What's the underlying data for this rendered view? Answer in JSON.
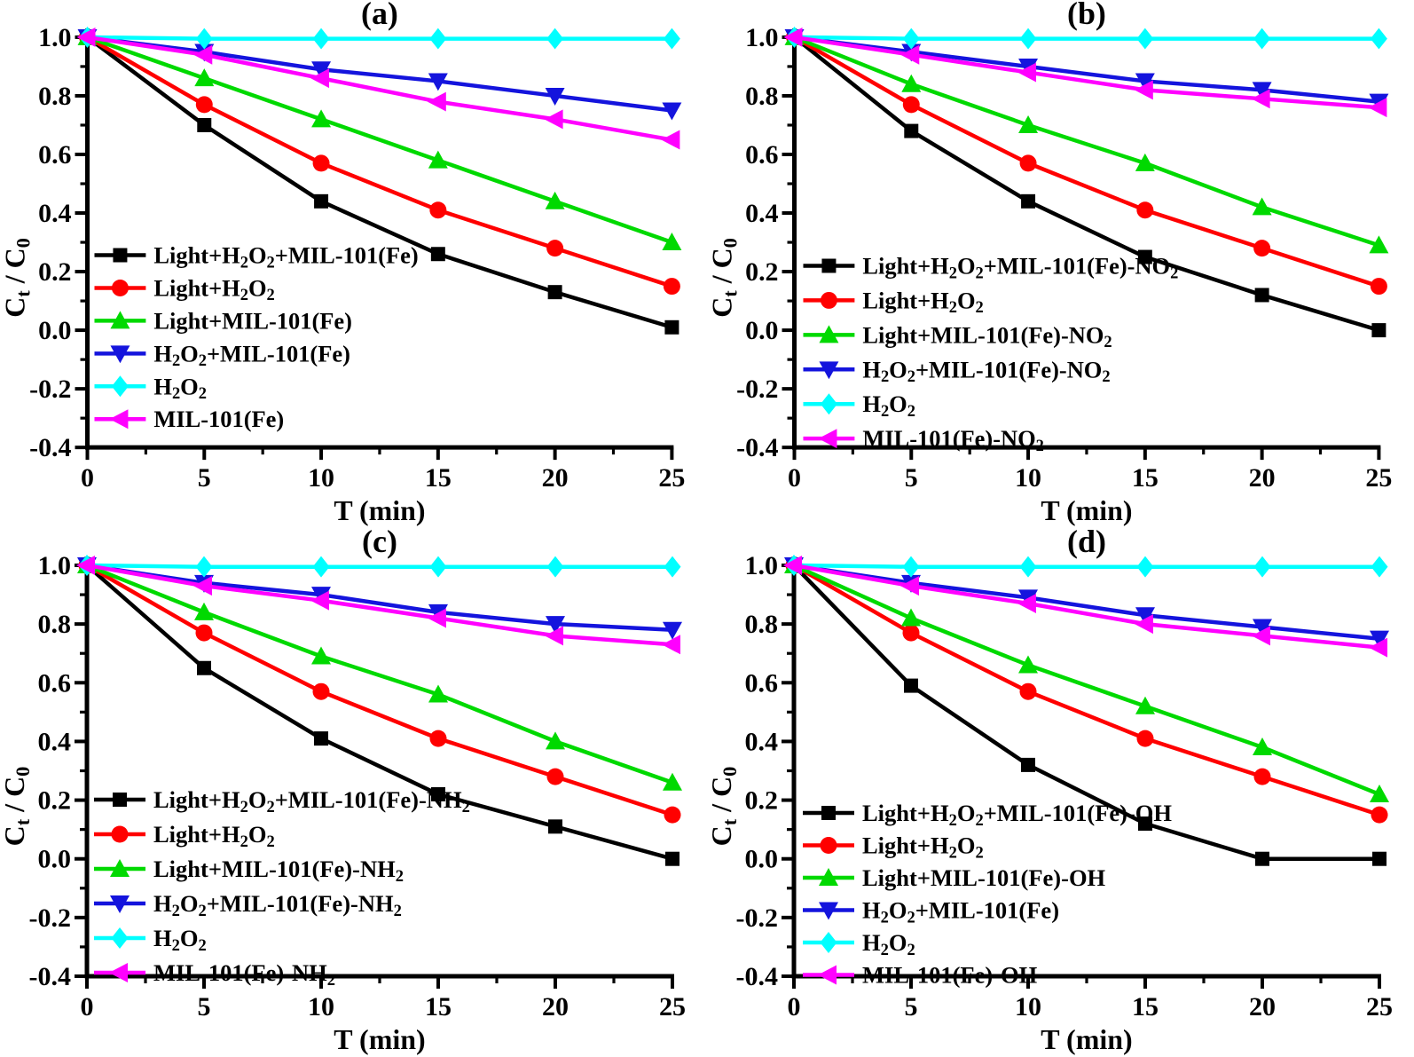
{
  "figure": {
    "background": "#ffffff",
    "colors": {
      "black": "#000000",
      "red": "#ff0000",
      "green": "#00d900",
      "blue": "#1414dd",
      "cyan": "#00ffff",
      "magenta": "#ff00ff"
    }
  },
  "chart_data": [
    {
      "panel": "a",
      "type": "line",
      "title": "(a)",
      "xlabel": "T (min)",
      "ylabel": "Ct / C0",
      "x": [
        0,
        5,
        10,
        15,
        20,
        25
      ],
      "xlim": [
        0,
        25
      ],
      "ylim": [
        -0.4,
        1.0
      ],
      "x_ticks": [
        "0",
        "5",
        "10",
        "15",
        "20",
        "25"
      ],
      "y_ticks": [
        "1.0",
        "0.8",
        "0.6",
        "0.4",
        "0.2",
        "0.0",
        "-0.2",
        "-0.4"
      ],
      "x_minor_ticks": [
        2.5,
        7.5,
        12.5,
        17.5,
        22.5
      ],
      "y_minor_step": 0.1,
      "grid": false,
      "legend_position": "inside-left-middle",
      "series": [
        {
          "name": "Light+H2O2+MIL-101(Fe)",
          "color": "#000000",
          "marker": "square",
          "values": [
            1.0,
            0.7,
            0.44,
            0.26,
            0.13,
            0.01
          ]
        },
        {
          "name": "Light+H2O2",
          "color": "#ff0000",
          "marker": "circle",
          "values": [
            1.0,
            0.77,
            0.57,
            0.41,
            0.28,
            0.15
          ]
        },
        {
          "name": "Light+MIL-101(Fe)",
          "color": "#00d900",
          "marker": "triangle-up",
          "values": [
            1.0,
            0.86,
            0.72,
            0.58,
            0.44,
            0.3
          ]
        },
        {
          "name": "H2O2+MIL-101(Fe)",
          "color": "#1414dd",
          "marker": "triangle-down",
          "values": [
            1.0,
            0.95,
            0.89,
            0.85,
            0.8,
            0.75
          ]
        },
        {
          "name": "H2O2",
          "color": "#00ffff",
          "marker": "diamond",
          "values": [
            1.0,
            0.995,
            0.995,
            0.995,
            0.995,
            0.995
          ]
        },
        {
          "name": "MIL-101(Fe)",
          "color": "#ff00ff",
          "marker": "triangle-left",
          "values": [
            1.0,
            0.94,
            0.86,
            0.78,
            0.72,
            0.65
          ]
        }
      ]
    },
    {
      "panel": "b",
      "type": "line",
      "title": "(b)",
      "xlabel": "T (min)",
      "ylabel": "Ct / C0",
      "x": [
        0,
        5,
        10,
        15,
        20,
        25
      ],
      "xlim": [
        0,
        25
      ],
      "ylim": [
        -0.4,
        1.0
      ],
      "x_ticks": [
        "0",
        "5",
        "10",
        "15",
        "20",
        "25"
      ],
      "y_ticks": [
        "1.0",
        "0.8",
        "0.6",
        "0.4",
        "0.2",
        "0.0",
        "-0.2",
        "-0.4"
      ],
      "x_minor_ticks": [
        2.5,
        7.5,
        12.5,
        17.5,
        22.5
      ],
      "y_minor_step": 0.1,
      "grid": false,
      "legend_position": "inside-left-middle",
      "series": [
        {
          "name": "Light+H2O2+MIL-101(Fe)-NO2",
          "color": "#000000",
          "marker": "square",
          "values": [
            1.0,
            0.68,
            0.44,
            0.25,
            0.12,
            0.0
          ]
        },
        {
          "name": "Light+H2O2",
          "color": "#ff0000",
          "marker": "circle",
          "values": [
            1.0,
            0.77,
            0.57,
            0.41,
            0.28,
            0.15
          ]
        },
        {
          "name": "Light+MIL-101(Fe)-NO2",
          "color": "#00d900",
          "marker": "triangle-up",
          "values": [
            1.0,
            0.84,
            0.7,
            0.57,
            0.42,
            0.29
          ]
        },
        {
          "name": "H2O2+MIL-101(Fe)-NO2",
          "color": "#1414dd",
          "marker": "triangle-down",
          "values": [
            1.0,
            0.95,
            0.9,
            0.85,
            0.82,
            0.78
          ]
        },
        {
          "name": "H2O2",
          "color": "#00ffff",
          "marker": "diamond",
          "values": [
            1.0,
            0.995,
            0.995,
            0.995,
            0.995,
            0.995
          ]
        },
        {
          "name": "MIL-101(Fe)-NO2",
          "color": "#ff00ff",
          "marker": "triangle-left",
          "values": [
            1.0,
            0.94,
            0.88,
            0.82,
            0.79,
            0.76
          ]
        }
      ]
    },
    {
      "panel": "c",
      "type": "line",
      "title": "(c)",
      "xlabel": "T (min)",
      "ylabel": "Ct / C0",
      "x": [
        0,
        5,
        10,
        15,
        20,
        25
      ],
      "xlim": [
        0,
        25
      ],
      "ylim": [
        -0.4,
        1.0
      ],
      "x_ticks": [
        "0",
        "5",
        "10",
        "15",
        "20",
        "25"
      ],
      "y_ticks": [
        "1.0",
        "0.8",
        "0.6",
        "0.4",
        "0.2",
        "0.0",
        "-0.2",
        "-0.4"
      ],
      "x_minor_ticks": [
        2.5,
        7.5,
        12.5,
        17.5,
        22.5
      ],
      "y_minor_step": 0.1,
      "grid": false,
      "legend_position": "inside-left-middle",
      "series": [
        {
          "name": "Light+H2O2+MIL-101(Fe)-NH2",
          "color": "#000000",
          "marker": "square",
          "values": [
            1.0,
            0.65,
            0.41,
            0.22,
            0.11,
            0.0
          ]
        },
        {
          "name": "Light+H2O2",
          "color": "#ff0000",
          "marker": "circle",
          "values": [
            1.0,
            0.77,
            0.57,
            0.41,
            0.28,
            0.15
          ]
        },
        {
          "name": "Light+MIL-101(Fe)-NH2",
          "color": "#00d900",
          "marker": "triangle-up",
          "values": [
            1.0,
            0.84,
            0.69,
            0.56,
            0.4,
            0.26
          ]
        },
        {
          "name": "H2O2+MIL-101(Fe)-NH2",
          "color": "#1414dd",
          "marker": "triangle-down",
          "values": [
            1.0,
            0.94,
            0.9,
            0.84,
            0.8,
            0.78
          ]
        },
        {
          "name": "H2O2",
          "color": "#00ffff",
          "marker": "diamond",
          "values": [
            1.0,
            0.995,
            0.995,
            0.995,
            0.995,
            0.995
          ]
        },
        {
          "name": "MIL-101(Fe)-NH2",
          "color": "#ff00ff",
          "marker": "triangle-left",
          "values": [
            1.0,
            0.93,
            0.88,
            0.82,
            0.76,
            0.73
          ]
        }
      ]
    },
    {
      "panel": "d",
      "type": "line",
      "title": "(d)",
      "xlabel": "T (min)",
      "ylabel": "Ct / C0",
      "x": [
        0,
        5,
        10,
        15,
        20,
        25
      ],
      "xlim": [
        0,
        25
      ],
      "ylim": [
        -0.4,
        1.0
      ],
      "x_ticks": [
        "0",
        "5",
        "10",
        "15",
        "20",
        "25"
      ],
      "y_ticks": [
        "1.0",
        "0.8",
        "0.6",
        "0.4",
        "0.2",
        "0.0",
        "-0.2",
        "-0.4"
      ],
      "x_minor_ticks": [
        2.5,
        7.5,
        12.5,
        17.5,
        22.5
      ],
      "y_minor_step": 0.1,
      "grid": false,
      "legend_position": "inside-left-middle",
      "series": [
        {
          "name": "Light+H2O2+MIL-101(Fe)-OH",
          "color": "#000000",
          "marker": "square",
          "values": [
            1.0,
            0.59,
            0.32,
            0.12,
            0.0,
            0.0
          ]
        },
        {
          "name": "Light+H2O2",
          "color": "#ff0000",
          "marker": "circle",
          "values": [
            1.0,
            0.77,
            0.57,
            0.41,
            0.28,
            0.15
          ]
        },
        {
          "name": "Light+MIL-101(Fe)-OH",
          "color": "#00d900",
          "marker": "triangle-up",
          "values": [
            1.0,
            0.82,
            0.66,
            0.52,
            0.38,
            0.22
          ]
        },
        {
          "name": "H2O2+MIL-101(Fe)",
          "color": "#1414dd",
          "marker": "triangle-down",
          "values": [
            1.0,
            0.94,
            0.89,
            0.83,
            0.79,
            0.75
          ]
        },
        {
          "name": "H2O2",
          "color": "#00ffff",
          "marker": "diamond",
          "values": [
            1.0,
            0.995,
            0.995,
            0.995,
            0.995,
            0.995
          ]
        },
        {
          "name": "MIL-101(Fe)-OH",
          "color": "#ff00ff",
          "marker": "triangle-left",
          "values": [
            1.0,
            0.93,
            0.87,
            0.8,
            0.76,
            0.72
          ]
        }
      ]
    }
  ]
}
